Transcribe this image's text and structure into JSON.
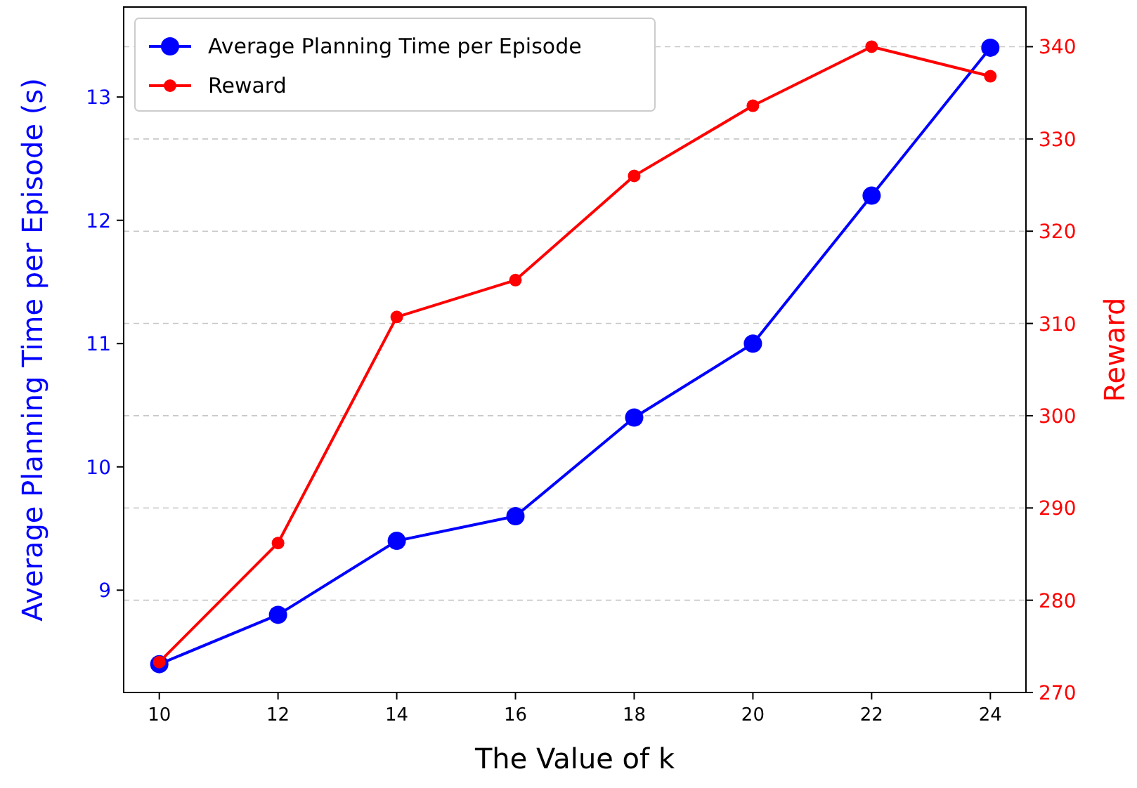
{
  "chart_data": {
    "type": "line",
    "xlabel": "The Value of k",
    "ylabel": "Average Planning Time per Episode (s)",
    "y2label": "Reward",
    "x": [
      10,
      12,
      14,
      16,
      18,
      20,
      22,
      24
    ],
    "xlim": [
      9.4,
      24.6
    ],
    "xticks": [
      10,
      12,
      14,
      16,
      18,
      20,
      22,
      24
    ],
    "ylim": [
      8.17,
      13.73
    ],
    "yticks": [
      9,
      10,
      11,
      12,
      13
    ],
    "y2lim": [
      270,
      344.3
    ],
    "y2ticks": [
      270,
      280,
      290,
      300,
      310,
      320,
      330,
      340
    ],
    "series": [
      {
        "name": "Average Planning Time per Episode",
        "color": "#0000ff",
        "values": [
          8.4,
          8.8,
          9.4,
          9.6,
          10.4,
          11.0,
          12.2,
          13.4
        ]
      },
      {
        "name": "Reward",
        "color": "#ff0000",
        "axis": "y2",
        "values": [
          273.3,
          286.2,
          310.7,
          314.7,
          326.0,
          333.6,
          340.0,
          336.8
        ]
      }
    ],
    "grid": "y",
    "legend": "top left",
    "marker": "circle",
    "line_style": "solid"
  }
}
